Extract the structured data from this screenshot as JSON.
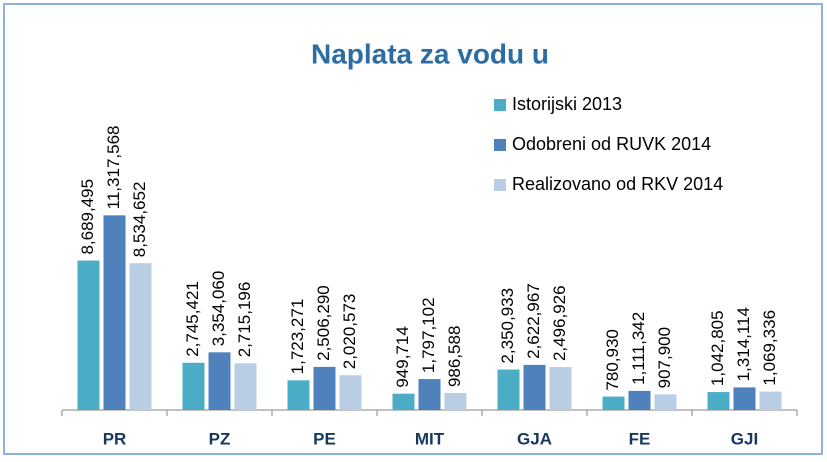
{
  "chart_data": {
    "type": "bar",
    "title": "Naplata za vodu u",
    "categories": [
      "PR",
      "PZ",
      "PE",
      "MIT",
      "GJA",
      "FE",
      "GJI"
    ],
    "series": [
      {
        "name": "Istorijski 2013",
        "color": "#4bacc6",
        "values": [
          8689495,
          2745421,
          1723271,
          949714,
          2350933,
          780930,
          1042805
        ],
        "value_labels": [
          "8,689,495",
          "2,745,421",
          "1,723,271",
          "949,714",
          "2,350,933",
          "780,930",
          "1,042,805"
        ]
      },
      {
        "name": "Odobreni od RUVK 2014",
        "color": "#4f81bd",
        "values": [
          11317568,
          3354060,
          2506290,
          1797102,
          2622967,
          1111342,
          1314114
        ],
        "value_labels": [
          "11,317,568",
          "3,354,060",
          "2,506,290",
          "1,797,102",
          "2,622,967",
          "1,111,342",
          "1,314,114"
        ]
      },
      {
        "name": "Realizovano od RKV 2014",
        "color": "#b9cde5",
        "values": [
          8534652,
          2715196,
          2020573,
          986588,
          2496926,
          907900,
          1069336
        ],
        "value_labels": [
          "8,534,652",
          "2,715,196",
          "2,020,573",
          "986,588",
          "2,496,926",
          "907,900",
          "1,069,336"
        ]
      }
    ],
    "ylim": [
      0,
      20000000
    ],
    "legend": "upper-right"
  }
}
